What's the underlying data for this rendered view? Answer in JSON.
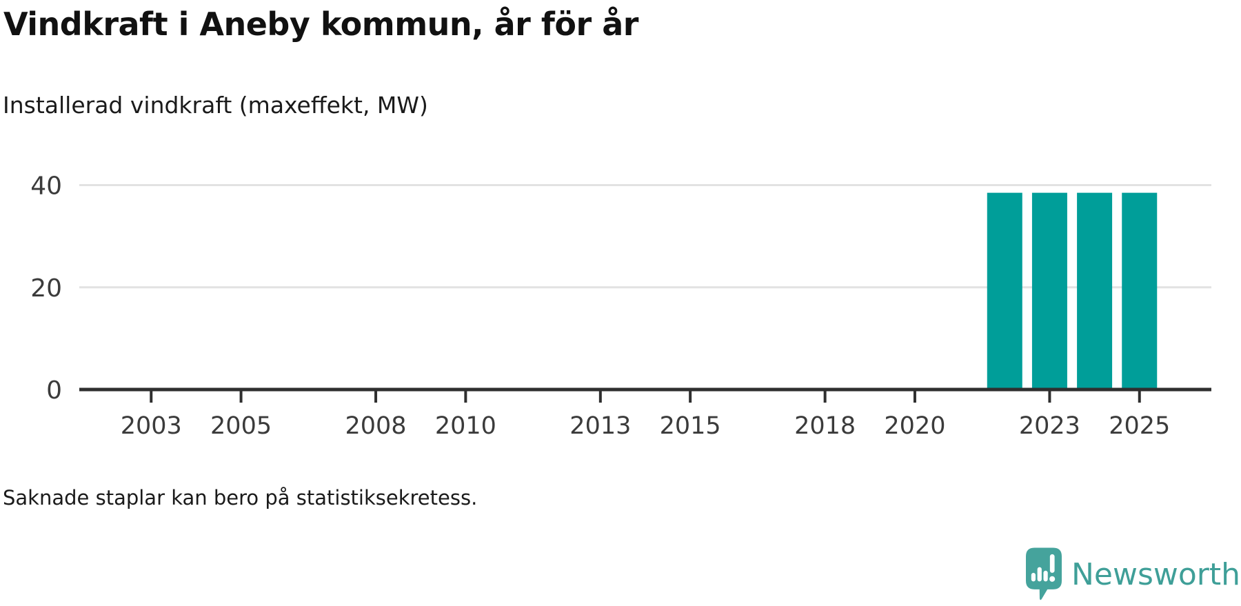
{
  "header": {
    "title": "Vindkraft i Aneby kommun, år för år",
    "subtitle": "Installerad vindkraft (maxeffekt, MW)"
  },
  "footnote": "Saknade staplar kan bero på statistiksekretess.",
  "branding": {
    "logo_text": "Newsworthy",
    "logo_icon": "speech-bubble-with-bar-chart-and-exclamation",
    "icon_color": "#45a39c",
    "text_color": "#3f9f98"
  },
  "chart_data": {
    "type": "bar",
    "title": "Vindkraft i Aneby kommun, år för år",
    "ylabel": "Installerad vindkraft (maxeffekt, MW)",
    "xlabel": "",
    "x": [
      2022,
      2023,
      2024,
      2025
    ],
    "values": [
      38.5,
      38.5,
      38.5,
      38.5
    ],
    "missing_years_note": "2003-2021 har inga staplar (saknade värden)",
    "xlim": [
      2001.4,
      2026.6
    ],
    "ylim": [
      0,
      40
    ],
    "xticks": [
      2003,
      2005,
      2008,
      2010,
      2013,
      2015,
      2018,
      2020,
      2023,
      2025
    ],
    "yticks": [
      0,
      20,
      40
    ],
    "grid": "horizontal",
    "legend": "none",
    "bar_color": "#009e99",
    "axis_color": "#2f2f2f",
    "grid_color": "#e2e2e2",
    "tick_label_color": "#3b3b3b"
  }
}
